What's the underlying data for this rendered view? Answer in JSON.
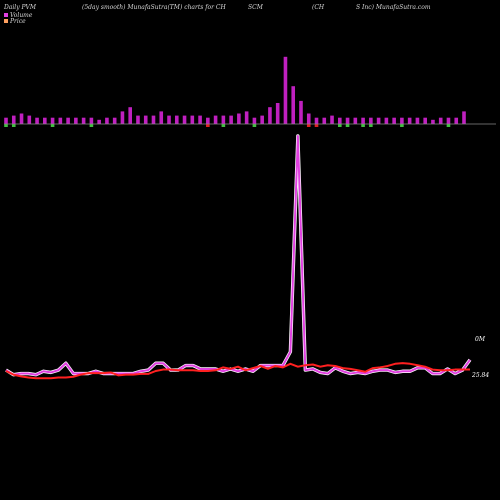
{
  "header": {
    "left": "Daily PVM",
    "center": "(5day smooth) MunafaSutra(TM) charts for CH",
    "ticker": "SCM",
    "right_a": "(CH",
    "right_b": "S Inc) MunafaSutra.com"
  },
  "legend": {
    "volume_label": "Volume",
    "price_label": "Price",
    "volume_color": "#e040e0",
    "price_color": "#ff4030"
  },
  "labels": {
    "volume_end": "0M",
    "price_end": "25.84"
  },
  "colors": {
    "background": "#000000",
    "bar_up": "#c020c0",
    "bar_down": "#40c040",
    "bar_red": "#e02020",
    "baseline": "#888888",
    "volume_line": "#e040e0",
    "price_line": "#ff2020"
  },
  "chart_data": [
    {
      "type": "bar",
      "title": "",
      "bars": [
        {
          "v": 3,
          "c": "up"
        },
        {
          "v": 4,
          "c": "up"
        },
        {
          "v": 5,
          "c": "up"
        },
        {
          "v": 4,
          "c": "up"
        },
        {
          "v": 3,
          "c": "up"
        },
        {
          "v": 3,
          "c": "up"
        },
        {
          "v": 3,
          "c": "up"
        },
        {
          "v": 3,
          "c": "up"
        },
        {
          "v": 3,
          "c": "up"
        },
        {
          "v": 3,
          "c": "up"
        },
        {
          "v": 3,
          "c": "up"
        },
        {
          "v": 3,
          "c": "up"
        },
        {
          "v": 2,
          "c": "up"
        },
        {
          "v": 3,
          "c": "up"
        },
        {
          "v": 3,
          "c": "up"
        },
        {
          "v": 6,
          "c": "up"
        },
        {
          "v": 8,
          "c": "up"
        },
        {
          "v": 4,
          "c": "up"
        },
        {
          "v": 4,
          "c": "up"
        },
        {
          "v": 4,
          "c": "up"
        },
        {
          "v": 6,
          "c": "up"
        },
        {
          "v": 4,
          "c": "up"
        },
        {
          "v": 4,
          "c": "up"
        },
        {
          "v": 4,
          "c": "up"
        },
        {
          "v": 4,
          "c": "up"
        },
        {
          "v": 4,
          "c": "up"
        },
        {
          "v": 3,
          "c": "up"
        },
        {
          "v": 4,
          "c": "up"
        },
        {
          "v": 4,
          "c": "up"
        },
        {
          "v": 4,
          "c": "up"
        },
        {
          "v": 5,
          "c": "up"
        },
        {
          "v": 6,
          "c": "up"
        },
        {
          "v": 3,
          "c": "up"
        },
        {
          "v": 4,
          "c": "up"
        },
        {
          "v": 8,
          "c": "up"
        },
        {
          "v": 10,
          "c": "up"
        },
        {
          "v": 32,
          "c": "up"
        },
        {
          "v": 18,
          "c": "up"
        },
        {
          "v": 11,
          "c": "up"
        },
        {
          "v": 5,
          "c": "up"
        },
        {
          "v": 3,
          "c": "up"
        },
        {
          "v": 3,
          "c": "up"
        },
        {
          "v": 4,
          "c": "up"
        },
        {
          "v": 3,
          "c": "up"
        },
        {
          "v": 3,
          "c": "up"
        },
        {
          "v": 3,
          "c": "up"
        },
        {
          "v": 3,
          "c": "up"
        },
        {
          "v": 3,
          "c": "up"
        },
        {
          "v": 3,
          "c": "up"
        },
        {
          "v": 3,
          "c": "up"
        },
        {
          "v": 3,
          "c": "up"
        },
        {
          "v": 3,
          "c": "up"
        },
        {
          "v": 3,
          "c": "up"
        },
        {
          "v": 3,
          "c": "up"
        },
        {
          "v": 3,
          "c": "up"
        },
        {
          "v": 2,
          "c": "up"
        },
        {
          "v": 3,
          "c": "up"
        },
        {
          "v": 3,
          "c": "up"
        },
        {
          "v": 3,
          "c": "up"
        },
        {
          "v": 6,
          "c": "up"
        }
      ],
      "down_bars": [
        {
          "v": 1,
          "c": "down"
        },
        {
          "v": 1,
          "c": "down"
        },
        {
          "v": 0,
          "c": "none"
        },
        {
          "v": 0,
          "c": "none"
        },
        {
          "v": 0,
          "c": "none"
        },
        {
          "v": 0,
          "c": "none"
        },
        {
          "v": 1,
          "c": "down"
        },
        {
          "v": 0,
          "c": "none"
        },
        {
          "v": 0,
          "c": "none"
        },
        {
          "v": 0,
          "c": "none"
        },
        {
          "v": 0,
          "c": "none"
        },
        {
          "v": 1,
          "c": "down"
        },
        {
          "v": 0,
          "c": "none"
        },
        {
          "v": 0,
          "c": "none"
        },
        {
          "v": 0,
          "c": "none"
        },
        {
          "v": 0,
          "c": "none"
        },
        {
          "v": 0,
          "c": "none"
        },
        {
          "v": 0,
          "c": "none"
        },
        {
          "v": 0,
          "c": "none"
        },
        {
          "v": 0,
          "c": "none"
        },
        {
          "v": 0,
          "c": "none"
        },
        {
          "v": 0,
          "c": "none"
        },
        {
          "v": 0,
          "c": "none"
        },
        {
          "v": 0,
          "c": "none"
        },
        {
          "v": 0,
          "c": "none"
        },
        {
          "v": 0,
          "c": "none"
        },
        {
          "v": 1,
          "c": "red"
        },
        {
          "v": 0,
          "c": "none"
        },
        {
          "v": 1,
          "c": "down"
        },
        {
          "v": 0,
          "c": "none"
        },
        {
          "v": 0,
          "c": "none"
        },
        {
          "v": 0,
          "c": "none"
        },
        {
          "v": 1,
          "c": "down"
        },
        {
          "v": 0,
          "c": "none"
        },
        {
          "v": 0,
          "c": "none"
        },
        {
          "v": 0,
          "c": "none"
        },
        {
          "v": 0,
          "c": "none"
        },
        {
          "v": 0,
          "c": "none"
        },
        {
          "v": 0,
          "c": "none"
        },
        {
          "v": 1,
          "c": "red"
        },
        {
          "v": 1,
          "c": "red"
        },
        {
          "v": 0,
          "c": "none"
        },
        {
          "v": 0,
          "c": "none"
        },
        {
          "v": 1,
          "c": "down"
        },
        {
          "v": 1,
          "c": "down"
        },
        {
          "v": 0,
          "c": "none"
        },
        {
          "v": 1,
          "c": "down"
        },
        {
          "v": 1,
          "c": "down"
        },
        {
          "v": 0,
          "c": "none"
        },
        {
          "v": 0,
          "c": "none"
        },
        {
          "v": 0,
          "c": "none"
        },
        {
          "v": 1,
          "c": "down"
        },
        {
          "v": 0,
          "c": "none"
        },
        {
          "v": 0,
          "c": "none"
        },
        {
          "v": 0,
          "c": "none"
        },
        {
          "v": 0,
          "c": "none"
        },
        {
          "v": 0,
          "c": "none"
        },
        {
          "v": 1,
          "c": "down"
        },
        {
          "v": 0,
          "c": "none"
        },
        {
          "v": 0,
          "c": "none"
        }
      ]
    },
    {
      "type": "line",
      "title": "",
      "series": [
        {
          "name": "Volume",
          "values": [
            6,
            2,
            3,
            3,
            2,
            5,
            4,
            6,
            12,
            3,
            3,
            3,
            5,
            3,
            3,
            3,
            3,
            3,
            5,
            6,
            12,
            12,
            6,
            6,
            10,
            10,
            7,
            7,
            7,
            5,
            7,
            5,
            7,
            5,
            10,
            10,
            10,
            10,
            22,
            210,
            6,
            7,
            4,
            3,
            8,
            5,
            3,
            4,
            3,
            5,
            6,
            6,
            4,
            5,
            5,
            8,
            8,
            3,
            3,
            7,
            3,
            6,
            15
          ]
        },
        {
          "name": "Price",
          "values": [
            25.8,
            25.7,
            25.65,
            25.62,
            25.6,
            25.6,
            25.6,
            25.62,
            25.62,
            25.64,
            25.7,
            25.74,
            25.74,
            25.74,
            25.76,
            25.68,
            25.7,
            25.7,
            25.72,
            25.72,
            25.8,
            25.84,
            25.84,
            25.82,
            25.82,
            25.82,
            25.8,
            25.8,
            25.82,
            25.9,
            25.86,
            25.92,
            25.82,
            25.88,
            25.94,
            25.86,
            25.94,
            25.9,
            26.0,
            25.92,
            25.96,
            25.98,
            25.92,
            25.96,
            25.94,
            25.88,
            25.86,
            25.82,
            25.78,
            25.88,
            25.9,
            25.94,
            26.0,
            26.02,
            26.0,
            25.96,
            25.92,
            25.84,
            25.82,
            25.82,
            25.84,
            25.84,
            25.84
          ]
        }
      ]
    }
  ]
}
